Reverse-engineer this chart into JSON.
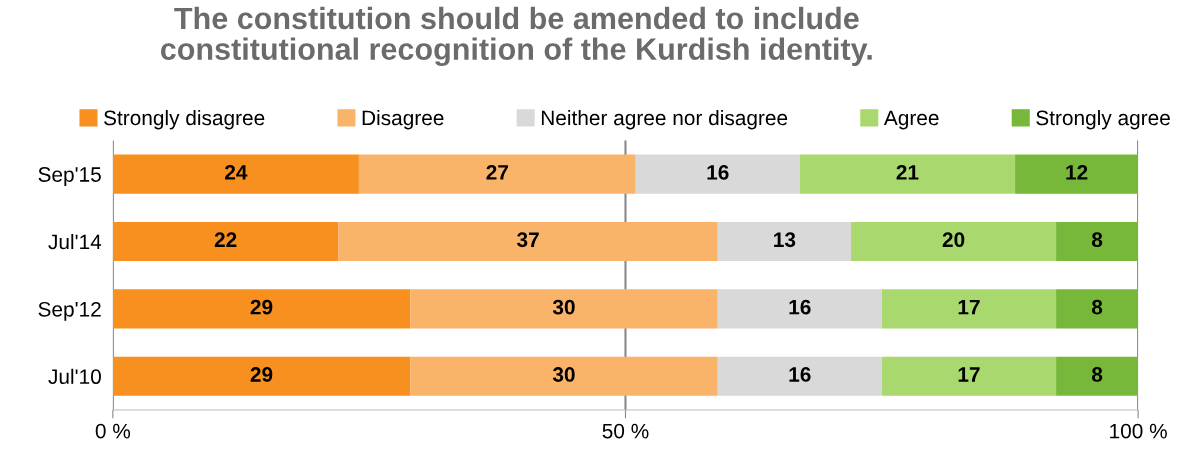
{
  "chart_data": {
    "type": "bar",
    "orientation": "horizontal",
    "stacked": true,
    "title": "The constitution should be amended to include\nconstitutional recognition of the Kurdish identity.",
    "categories": [
      "Sep'15",
      "Jul'14",
      "Sep'12",
      "Jul'10"
    ],
    "series": [
      {
        "name": "Strongly disagree",
        "color": "#f7901e",
        "values": [
          24,
          22,
          29,
          29
        ]
      },
      {
        "name": "Disagree",
        "color": "#fab46a",
        "values": [
          27,
          37,
          30,
          30
        ]
      },
      {
        "name": "Neither agree nor disagree",
        "color": "#d9d9d9",
        "values": [
          16,
          13,
          16,
          16
        ]
      },
      {
        "name": "Agree",
        "color": "#a9d86e",
        "values": [
          21,
          20,
          17,
          17
        ]
      },
      {
        "name": "Strongly agree",
        "color": "#77b83a",
        "values": [
          12,
          8,
          8,
          8
        ]
      }
    ],
    "xlim": [
      0,
      100
    ],
    "xticks": [
      {
        "value": 0,
        "label": "0 %"
      },
      {
        "value": 50,
        "label": "50 %"
      },
      {
        "value": 100,
        "label": "100 %"
      }
    ],
    "grid": "x",
    "legend": "top",
    "data_labels": true
  }
}
